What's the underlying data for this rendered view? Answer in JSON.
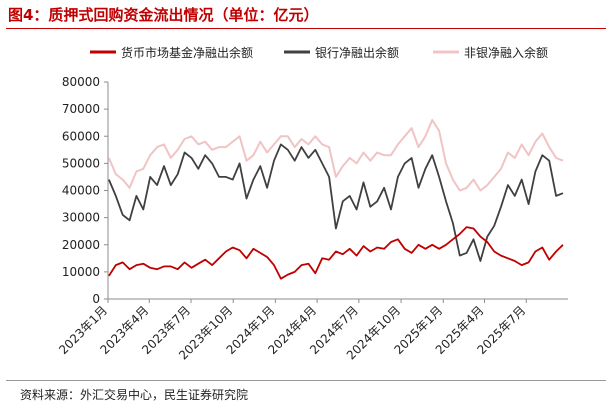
{
  "title": "图4：质押式回购资金流出情况（单位：亿元）",
  "source": "资料来源：外汇交易中心，民生证券研究院",
  "colors": {
    "series_red": "#c00000",
    "series_gray": "#404040",
    "series_pink": "#f0c4c4",
    "title": "#c00000",
    "axis": "#8c8c8c"
  },
  "chart_data": {
    "type": "line",
    "title": "",
    "xlabel": "",
    "ylabel": "",
    "ylim": [
      0,
      80000
    ],
    "yticks": [
      0,
      10000,
      20000,
      30000,
      40000,
      50000,
      60000,
      70000,
      80000
    ],
    "xlim": [
      "2023-01-01",
      "2025-09-30"
    ],
    "xticks": [
      "2023年1月",
      "2023年4月",
      "2023年7月",
      "2023年10月",
      "2024年1月",
      "2024年4月",
      "2024年7月",
      "2024年10月",
      "2025年1月",
      "2025年4月",
      "2025年7月"
    ],
    "xtick_dates": [
      "2023-01-01",
      "2023-04-01",
      "2023-07-01",
      "2023-10-01",
      "2024-01-01",
      "2024-04-01",
      "2024-07-01",
      "2024-10-01",
      "2025-01-01",
      "2025-04-01",
      "2025-07-01"
    ],
    "grid": false,
    "legend": "top",
    "x": [
      "2023-01-03",
      "2023-01-18",
      "2023-02-02",
      "2023-02-17",
      "2023-03-04",
      "2023-03-19",
      "2023-04-03",
      "2023-04-18",
      "2023-05-03",
      "2023-05-18",
      "2023-06-02",
      "2023-06-17",
      "2023-07-02",
      "2023-07-17",
      "2023-08-01",
      "2023-08-16",
      "2023-08-31",
      "2023-09-15",
      "2023-09-30",
      "2023-10-15",
      "2023-10-30",
      "2023-11-14",
      "2023-11-29",
      "2023-12-14",
      "2023-12-29",
      "2024-01-13",
      "2024-01-28",
      "2024-02-12",
      "2024-02-27",
      "2024-03-13",
      "2024-03-28",
      "2024-04-12",
      "2024-04-27",
      "2024-05-12",
      "2024-05-27",
      "2024-06-11",
      "2024-06-26",
      "2024-07-11",
      "2024-07-26",
      "2024-08-10",
      "2024-08-25",
      "2024-09-09",
      "2024-09-24",
      "2024-10-09",
      "2024-10-24",
      "2024-11-08",
      "2024-11-23",
      "2024-12-08",
      "2024-12-23",
      "2025-01-07",
      "2025-01-22",
      "2025-02-06",
      "2025-02-21",
      "2025-03-08",
      "2025-03-23",
      "2025-04-07",
      "2025-04-22",
      "2025-05-07",
      "2025-05-22",
      "2025-06-06",
      "2025-06-21",
      "2025-07-06",
      "2025-07-21",
      "2025-08-05",
      "2025-08-20",
      "2025-09-04",
      "2025-09-19"
    ],
    "series": [
      {
        "name": "货币市场基金净融出余额",
        "color": "#c00000",
        "values": [
          8500,
          12500,
          13500,
          11000,
          12500,
          13000,
          11500,
          11000,
          12000,
          12000,
          11000,
          13500,
          11500,
          13000,
          14500,
          12500,
          15000,
          17500,
          19000,
          18000,
          15000,
          18500,
          17000,
          15500,
          12500,
          7500,
          9000,
          10000,
          12500,
          13000,
          9500,
          15000,
          14500,
          17500,
          16500,
          18500,
          16000,
          19500,
          17500,
          19000,
          18500,
          21000,
          22000,
          18500,
          17000,
          20000,
          18500,
          20000,
          18500,
          20000,
          22000,
          24000,
          26500,
          26000,
          23000,
          21000,
          17500,
          16000,
          15000,
          14000,
          12500,
          13500,
          17500,
          19000,
          14500,
          17500,
          20000
        ]
      },
      {
        "name": "银行净融出余额",
        "color": "#404040",
        "values": [
          44000,
          38000,
          31000,
          29000,
          38000,
          33000,
          45000,
          42000,
          49000,
          42000,
          46000,
          54000,
          52000,
          48000,
          53000,
          50000,
          45000,
          45000,
          44000,
          50000,
          37000,
          44000,
          49000,
          41000,
          51000,
          57000,
          55000,
          51000,
          56000,
          52000,
          55000,
          50000,
          45000,
          26000,
          36000,
          38000,
          33000,
          43000,
          34000,
          36000,
          41000,
          33000,
          45000,
          50000,
          52000,
          41000,
          48000,
          53000,
          45000,
          36000,
          28000,
          16000,
          17000,
          22000,
          14000,
          23000,
          27000,
          34000,
          42000,
          38000,
          44000,
          35000,
          47000,
          53000,
          51000,
          38000,
          39000
        ]
      },
      {
        "name": "非银净融入余额",
        "color": "#f0c4c4",
        "values": [
          52000,
          46000,
          44000,
          41000,
          47000,
          48000,
          53000,
          56000,
          57000,
          52000,
          55000,
          59000,
          60000,
          57000,
          58000,
          55000,
          56000,
          56000,
          58000,
          60000,
          51000,
          53000,
          58000,
          54000,
          57000,
          60000,
          60000,
          56000,
          59000,
          57000,
          60000,
          57000,
          56000,
          45000,
          49000,
          52000,
          50000,
          54000,
          51000,
          54000,
          53000,
          53000,
          57000,
          60000,
          63000,
          56000,
          60000,
          66000,
          62000,
          50000,
          44000,
          40000,
          41000,
          44000,
          40000,
          42000,
          45000,
          48000,
          54000,
          52000,
          57000,
          53000,
          58000,
          61000,
          56000,
          52000,
          51000
        ]
      }
    ]
  }
}
